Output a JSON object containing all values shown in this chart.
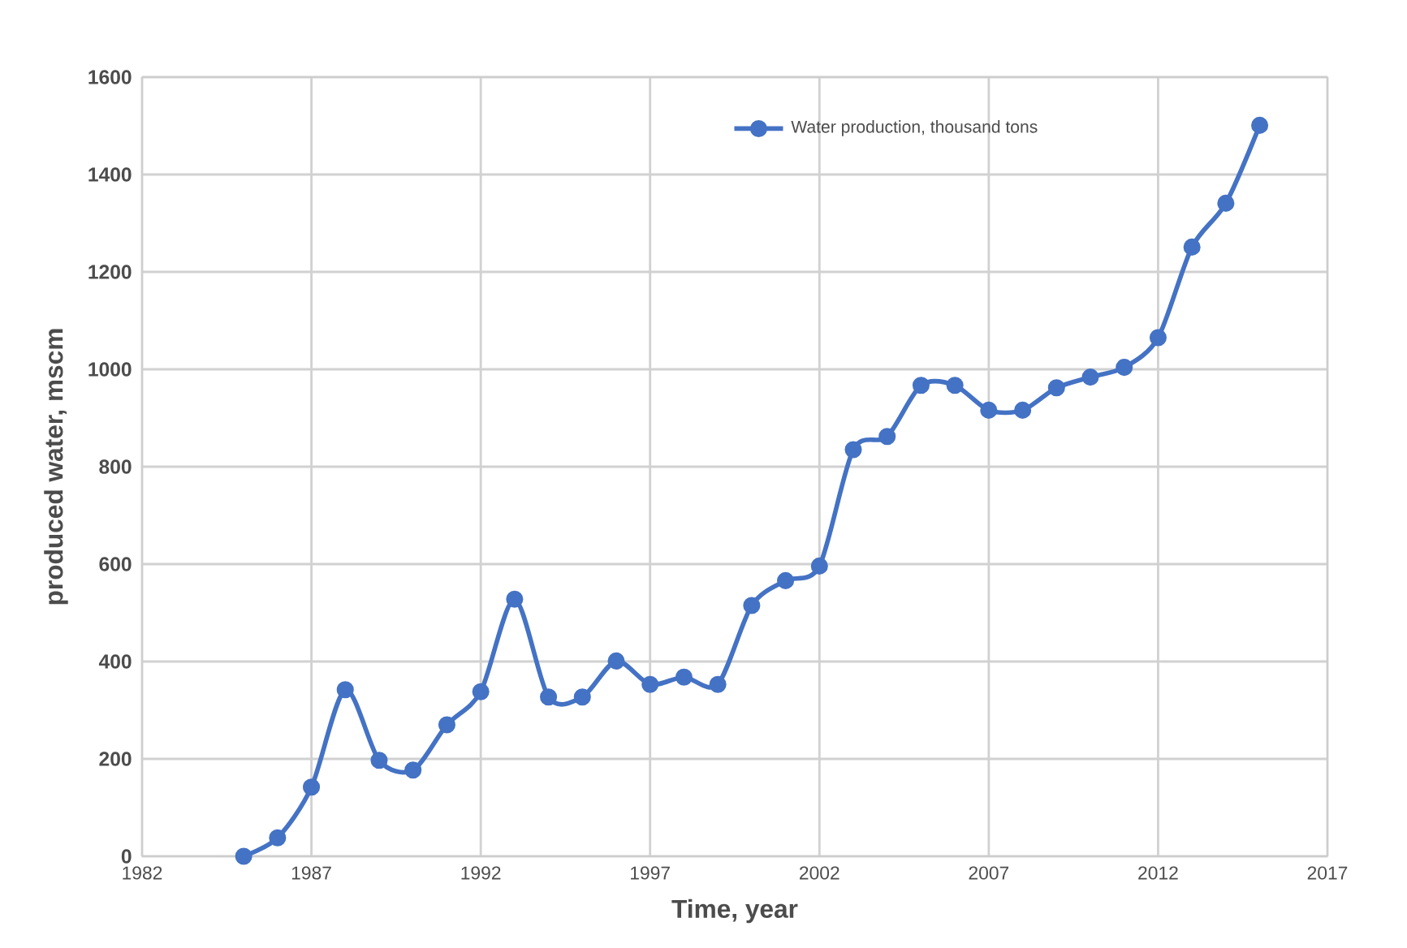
{
  "chart_data": {
    "type": "line",
    "xlabel": "Time, year",
    "ylabel": "produced  water, mscm",
    "x": [
      1985,
      1986,
      1987,
      1988,
      1989,
      1990,
      1991,
      1992,
      1993,
      1994,
      1995,
      1996,
      1997,
      1998,
      1999,
      2000,
      2001,
      2002,
      2003,
      2004,
      2005,
      2006,
      2007,
      2008,
      2009,
      2010,
      2011,
      2012,
      2013,
      2014,
      2015
    ],
    "series": [
      {
        "name": "Water production, thousand tons",
        "color": "#4472c4",
        "values": [
          0,
          38,
          142,
          342,
          197,
          177,
          270,
          338,
          528,
          327,
          327,
          401,
          353,
          368,
          353,
          515,
          566,
          596,
          835,
          862,
          967,
          967,
          916,
          916,
          962,
          984,
          1004,
          1065,
          1251,
          1341,
          1501
        ]
      }
    ],
    "xlim": [
      1982,
      2017
    ],
    "xticks": [
      1982,
      1987,
      1992,
      1997,
      2002,
      2007,
      2012,
      2017
    ],
    "ylim": [
      0,
      1600
    ],
    "yticks": [
      0,
      200,
      400,
      600,
      800,
      1000,
      1200,
      1400,
      1600
    ],
    "grid": true,
    "legend": "top right",
    "marker": "circle",
    "line_style": "solid"
  }
}
